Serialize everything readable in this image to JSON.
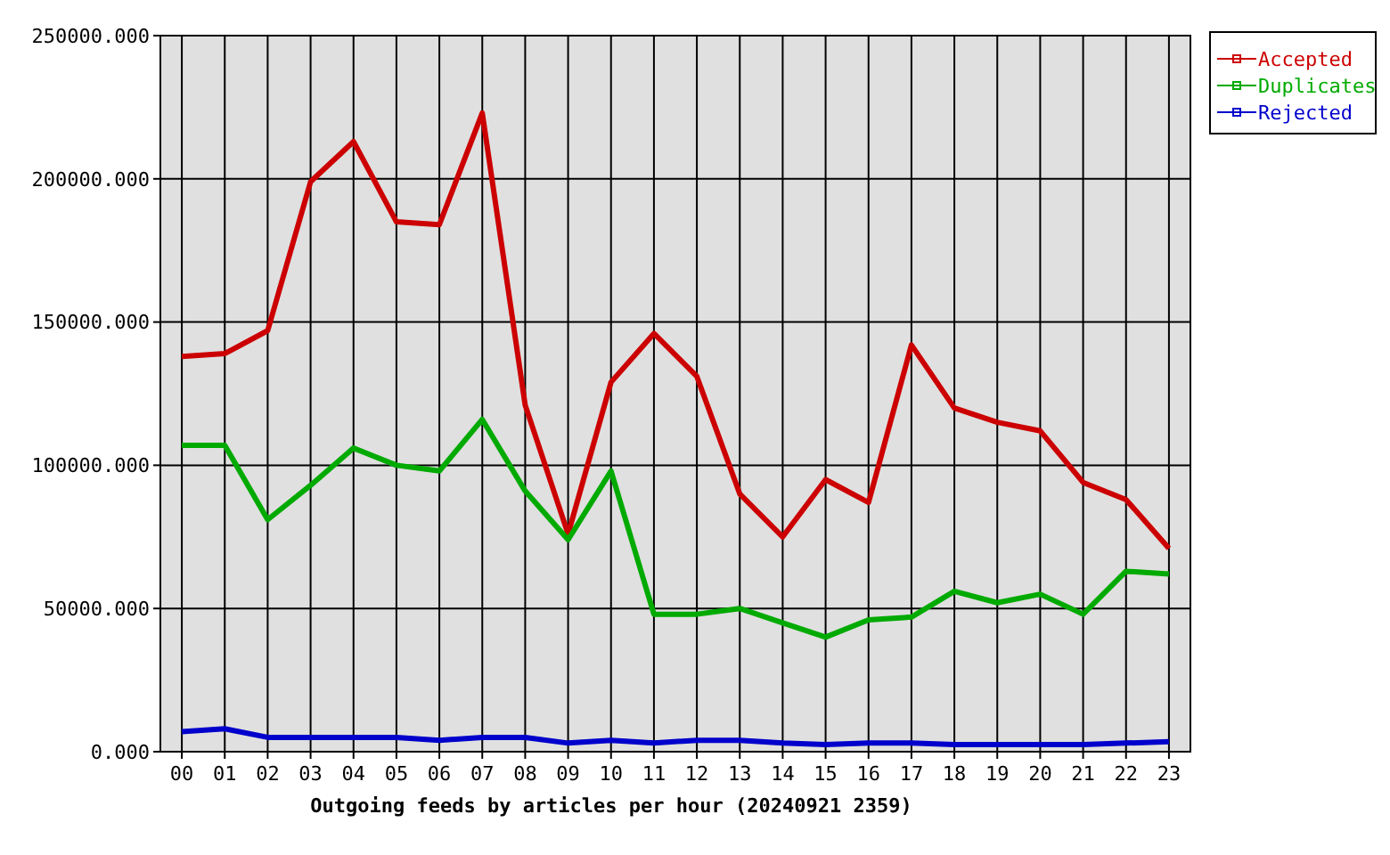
{
  "chart_data": {
    "type": "line",
    "xlabel": "Outgoing feeds by articles per hour (20240921 2359)",
    "categories": [
      "00",
      "01",
      "02",
      "03",
      "04",
      "05",
      "06",
      "07",
      "08",
      "09",
      "10",
      "11",
      "12",
      "13",
      "14",
      "15",
      "16",
      "17",
      "18",
      "19",
      "20",
      "21",
      "22",
      "23"
    ],
    "series": [
      {
        "name": "Accepted",
        "color": "#cc0000",
        "values": [
          138000,
          139000,
          147000,
          199000,
          213000,
          185000,
          184000,
          223000,
          121000,
          76000,
          129000,
          146000,
          131000,
          90000,
          75000,
          95000,
          87000,
          142000,
          120000,
          115000,
          112000,
          94000,
          88000,
          71000
        ]
      },
      {
        "name": "Duplicates",
        "color": "#00aa00",
        "values": [
          107000,
          107000,
          81000,
          93000,
          106000,
          100000,
          98000,
          116000,
          91000,
          74000,
          98000,
          48000,
          48000,
          50000,
          45000,
          40000,
          46000,
          47000,
          56000,
          52000,
          55000,
          48000,
          63000,
          62000
        ]
      },
      {
        "name": "Rejected",
        "color": "#0000cc",
        "values": [
          7000,
          8000,
          5000,
          5000,
          5000,
          5000,
          4000,
          5000,
          5000,
          3000,
          4000,
          3000,
          4000,
          4000,
          3000,
          2500,
          3000,
          3000,
          2500,
          2500,
          2500,
          2500,
          3000,
          3500
        ]
      }
    ],
    "ylim": [
      0,
      250000
    ],
    "yticks": [
      {
        "value": 0,
        "label": "0.000"
      },
      {
        "value": 50000,
        "label": "50000.000"
      },
      {
        "value": 100000,
        "label": "100000.000"
      },
      {
        "value": 150000,
        "label": "150000.000"
      },
      {
        "value": 200000,
        "label": "200000.000"
      },
      {
        "value": 250000,
        "label": "250000.000"
      }
    ],
    "grid": true,
    "legend": "top right",
    "marker": "none",
    "line_style": "solid"
  }
}
